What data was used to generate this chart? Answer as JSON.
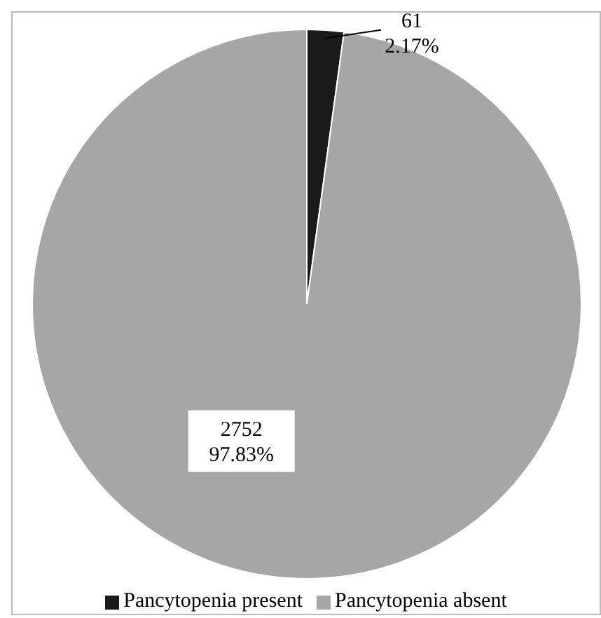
{
  "chart_data": {
    "type": "pie",
    "categories": [
      "Pancytopenia present",
      "Pancytopenia absent"
    ],
    "values": [
      61,
      2752
    ],
    "colors": [
      "#1a1a1a",
      "#a6a6a6"
    ],
    "value_labels": [
      "61\n2.17%",
      "2752\n97.83%"
    ],
    "legend": "bottom"
  }
}
